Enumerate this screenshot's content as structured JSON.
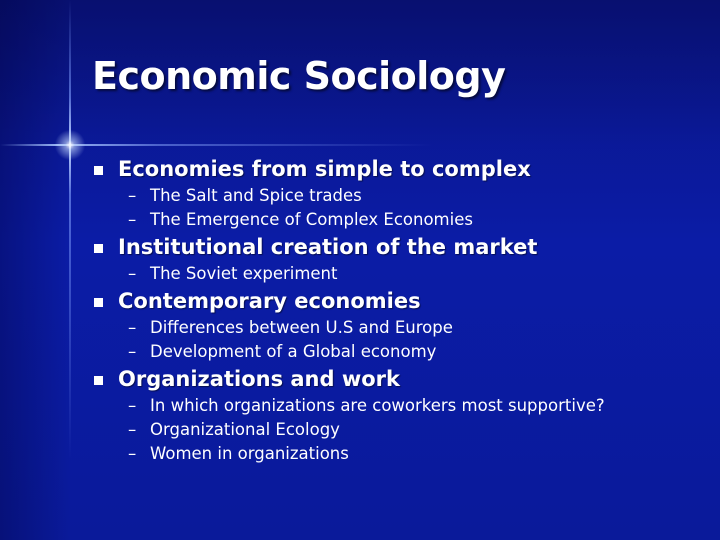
{
  "slide": {
    "title": "Economic Sociology",
    "bullets": [
      {
        "text": "Economies from simple to complex",
        "subs": [
          "The Salt and Spice trades",
          "The Emergence of Complex Economies"
        ]
      },
      {
        "text": "Institutional creation of the market",
        "subs": [
          "The Soviet experiment"
        ]
      },
      {
        "text": "Contemporary economies",
        "subs": [
          "Differences between U.S and Europe",
          "Development of a Global economy"
        ]
      },
      {
        "text": "Organizations and work",
        "subs": [
          "In which organizations are coworkers most supportive?",
          "Organizational Ecology",
          "Women in organizations"
        ]
      }
    ],
    "sub_marker": "–"
  },
  "colors": {
    "background": "#0b1ca6",
    "text": "#ffffff",
    "accent_line": "#aac8ff"
  }
}
